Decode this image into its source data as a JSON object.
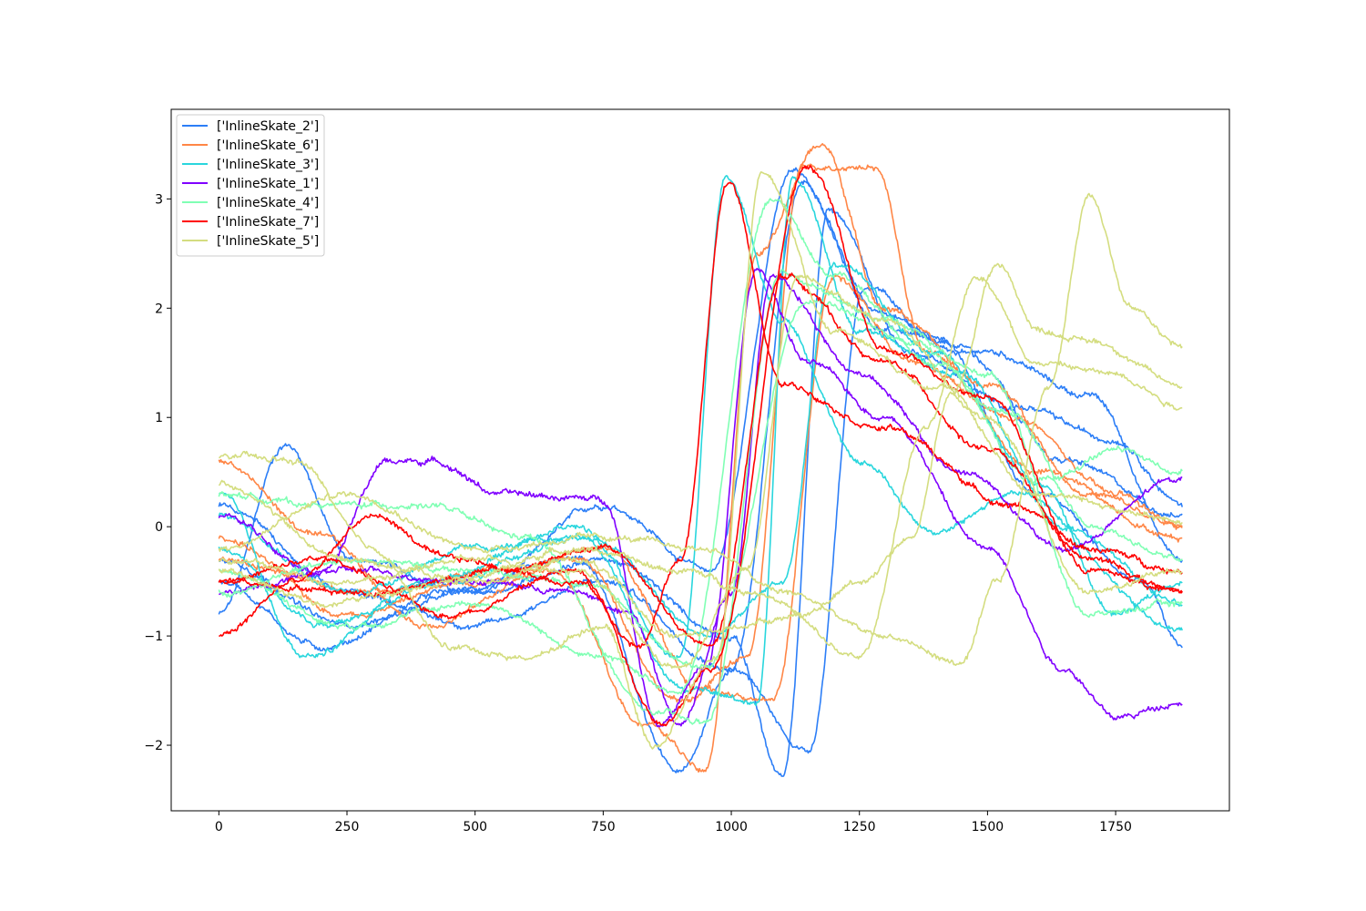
{
  "chart_data": {
    "type": "line",
    "title": "",
    "xlabel": "",
    "ylabel": "",
    "xlim": [
      -93,
      1972
    ],
    "ylim": [
      -2.6,
      3.82
    ],
    "x_ticks": [
      0,
      250,
      500,
      750,
      1000,
      1250,
      1500,
      1750
    ],
    "y_ticks": [
      -2,
      -1,
      0,
      1,
      2,
      3
    ],
    "grid": false,
    "legend_position": "top-left",
    "n_points": 1882,
    "series": [
      {
        "name": "['InlineSkate_2']",
        "color": "#2c7ef7",
        "shape": [
          [
            0,
            -0.8
          ],
          [
            130,
            0.75
          ],
          [
            260,
            -0.3
          ],
          [
            500,
            -0.6
          ],
          [
            750,
            0.2
          ],
          [
            960,
            -0.4
          ],
          [
            1120,
            3.25
          ],
          [
            1300,
            1.8
          ],
          [
            1500,
            1.6
          ],
          [
            1700,
            1.2
          ],
          [
            1880,
            -0.3
          ]
        ]
      },
      {
        "name": "['InlineSkate_2']",
        "color": "#2c7ef7",
        "shape": [
          [
            0,
            -0.5
          ],
          [
            200,
            -1.1
          ],
          [
            450,
            -0.6
          ],
          [
            700,
            -0.3
          ],
          [
            900,
            -2.25
          ],
          [
            1000,
            -1.3
          ],
          [
            1140,
            3.15
          ],
          [
            1280,
            2.0
          ],
          [
            1450,
            1.6
          ],
          [
            1650,
            0.6
          ],
          [
            1880,
            0.1
          ]
        ]
      },
      {
        "name": "['InlineSkate_2']",
        "color": "#2c7ef7",
        "shape": [
          [
            0,
            -0.3
          ],
          [
            250,
            -0.9
          ],
          [
            500,
            -0.6
          ],
          [
            750,
            -0.3
          ],
          [
            1000,
            -1.0
          ],
          [
            1100,
            -2.3
          ],
          [
            1190,
            2.9
          ],
          [
            1350,
            1.6
          ],
          [
            1550,
            1.1
          ],
          [
            1750,
            0.8
          ],
          [
            1880,
            0.2
          ]
        ]
      },
      {
        "name": "['InlineSkate_2']",
        "color": "#2c7ef7",
        "shape": [
          [
            0,
            0.2
          ],
          [
            250,
            -0.6
          ],
          [
            500,
            -0.9
          ],
          [
            750,
            -0.5
          ],
          [
            1000,
            -1.3
          ],
          [
            1150,
            -2.05
          ],
          [
            1260,
            2.2
          ],
          [
            1400,
            1.7
          ],
          [
            1600,
            0.3
          ],
          [
            1800,
            -0.5
          ],
          [
            1880,
            -1.1
          ]
        ]
      },
      {
        "name": "['InlineSkate_6']",
        "color": "#ff8646",
        "shape": [
          [
            0,
            0.6
          ],
          [
            200,
            -0.1
          ],
          [
            400,
            -0.9
          ],
          [
            650,
            -0.4
          ],
          [
            830,
            -1.8
          ],
          [
            950,
            -2.2
          ],
          [
            1050,
            2.5
          ],
          [
            1175,
            3.5
          ],
          [
            1300,
            2.0
          ],
          [
            1500,
            1.3
          ],
          [
            1700,
            0.3
          ],
          [
            1880,
            0.0
          ]
        ]
      },
      {
        "name": "['InlineSkate_6']",
        "color": "#ff8646",
        "shape": [
          [
            0,
            -0.1
          ],
          [
            250,
            -0.8
          ],
          [
            500,
            -0.5
          ],
          [
            700,
            -0.3
          ],
          [
            900,
            -1.6
          ],
          [
            1030,
            -1.2
          ],
          [
            1140,
            3.3
          ],
          [
            1280,
            3.3
          ],
          [
            1380,
            1.6
          ],
          [
            1600,
            0.5
          ],
          [
            1880,
            -0.1
          ]
        ]
      },
      {
        "name": "['InlineSkate_6']",
        "color": "#ff8646",
        "shape": [
          [
            0,
            -0.3
          ],
          [
            300,
            -0.6
          ],
          [
            550,
            -0.4
          ],
          [
            750,
            -0.2
          ],
          [
            950,
            -1.5
          ],
          [
            1080,
            -1.6
          ],
          [
            1200,
            2.3
          ],
          [
            1350,
            1.5
          ],
          [
            1550,
            1.0
          ],
          [
            1750,
            0.3
          ],
          [
            1880,
            0.0
          ]
        ]
      },
      {
        "name": "['InlineSkate_3']",
        "color": "#29d6dd",
        "shape": [
          [
            0,
            0.3
          ],
          [
            170,
            -1.2
          ],
          [
            400,
            -0.5
          ],
          [
            700,
            0.0
          ],
          [
            900,
            -1.2
          ],
          [
            990,
            3.2
          ],
          [
            1100,
            1.9
          ],
          [
            1250,
            0.6
          ],
          [
            1400,
            -0.05
          ],
          [
            1550,
            0.3
          ],
          [
            1880,
            -0.95
          ]
        ]
      },
      {
        "name": "['InlineSkate_3']",
        "color": "#29d6dd",
        "shape": [
          [
            0,
            -0.2
          ],
          [
            200,
            -0.9
          ],
          [
            450,
            -0.5
          ],
          [
            700,
            -0.1
          ],
          [
            920,
            -1.5
          ],
          [
            1050,
            -1.6
          ],
          [
            1120,
            3.2
          ],
          [
            1250,
            1.8
          ],
          [
            1450,
            1.4
          ],
          [
            1650,
            0.0
          ],
          [
            1880,
            -0.7
          ]
        ]
      },
      {
        "name": "['InlineSkate_3']",
        "color": "#29d6dd",
        "shape": [
          [
            0,
            0.1
          ],
          [
            250,
            -0.6
          ],
          [
            500,
            -0.2
          ],
          [
            720,
            -0.1
          ],
          [
            960,
            -1.0
          ],
          [
            1100,
            -0.5
          ],
          [
            1200,
            2.4
          ],
          [
            1400,
            1.6
          ],
          [
            1600,
            0.4
          ],
          [
            1750,
            -0.8
          ],
          [
            1880,
            -0.5
          ]
        ]
      },
      {
        "name": "['InlineSkate_1']",
        "color": "#8000ff",
        "shape": [
          [
            0,
            0.1
          ],
          [
            200,
            -0.4
          ],
          [
            330,
            0.6
          ],
          [
            420,
            0.6
          ],
          [
            550,
            0.3
          ],
          [
            750,
            0.25
          ],
          [
            860,
            -1.8
          ],
          [
            950,
            -1.3
          ],
          [
            1050,
            2.35
          ],
          [
            1150,
            1.5
          ],
          [
            1300,
            1.0
          ],
          [
            1500,
            -0.2
          ],
          [
            1650,
            -1.3
          ],
          [
            1750,
            -1.75
          ],
          [
            1880,
            -1.6
          ]
        ]
      },
      {
        "name": "['InlineSkate_1']",
        "color": "#8000ff",
        "shape": [
          [
            0,
            -0.6
          ],
          [
            250,
            -0.4
          ],
          [
            500,
            -0.5
          ],
          [
            700,
            -0.6
          ],
          [
            800,
            -0.8
          ],
          [
            900,
            -1.8
          ],
          [
            1000,
            -0.6
          ],
          [
            1080,
            2.3
          ],
          [
            1250,
            1.4
          ],
          [
            1450,
            0.5
          ],
          [
            1650,
            -0.2
          ],
          [
            1880,
            0.45
          ]
        ]
      },
      {
        "name": "['InlineSkate_4']",
        "color": "#80ffb4",
        "shape": [
          [
            0,
            0.3
          ],
          [
            200,
            0.2
          ],
          [
            400,
            0.2
          ],
          [
            600,
            -0.1
          ],
          [
            850,
            -1.7
          ],
          [
            950,
            -1.8
          ],
          [
            1100,
            2.3
          ],
          [
            1300,
            1.9
          ],
          [
            1500,
            1.4
          ],
          [
            1700,
            -0.8
          ],
          [
            1880,
            -0.7
          ]
        ]
      },
      {
        "name": "['InlineSkate_4']",
        "color": "#80ffb4",
        "shape": [
          [
            0,
            -0.4
          ],
          [
            250,
            -0.9
          ],
          [
            500,
            -0.7
          ],
          [
            750,
            -1.2
          ],
          [
            900,
            -1.5
          ],
          [
            1080,
            3.0
          ],
          [
            1200,
            2.3
          ],
          [
            1400,
            1.5
          ],
          [
            1600,
            0.4
          ],
          [
            1750,
            0.7
          ],
          [
            1880,
            0.5
          ]
        ]
      },
      {
        "name": "['InlineSkate_4']",
        "color": "#80ffb4",
        "shape": [
          [
            0,
            -0.6
          ],
          [
            250,
            -0.3
          ],
          [
            500,
            -0.4
          ],
          [
            700,
            -0.5
          ],
          [
            950,
            -1.3
          ],
          [
            1150,
            2.1
          ],
          [
            1350,
            1.7
          ],
          [
            1550,
            1.0
          ],
          [
            1700,
            0.0
          ],
          [
            1880,
            -0.3
          ]
        ]
      },
      {
        "name": "['InlineSkate_7']",
        "color": "#ff0000",
        "shape": [
          [
            0,
            -1.0
          ],
          [
            150,
            -0.5
          ],
          [
            300,
            0.1
          ],
          [
            450,
            -0.3
          ],
          [
            700,
            -0.5
          ],
          [
            820,
            -1.1
          ],
          [
            900,
            -0.3
          ],
          [
            995,
            3.15
          ],
          [
            1100,
            1.3
          ],
          [
            1300,
            0.9
          ],
          [
            1550,
            0.2
          ],
          [
            1700,
            -0.2
          ],
          [
            1880,
            -0.4
          ]
        ]
      },
      {
        "name": "['InlineSkate_7']",
        "color": "#ff0000",
        "shape": [
          [
            0,
            -0.5
          ],
          [
            200,
            -0.3
          ],
          [
            450,
            -0.8
          ],
          [
            700,
            -0.4
          ],
          [
            870,
            -1.8
          ],
          [
            960,
            -1.3
          ],
          [
            1150,
            3.3
          ],
          [
            1300,
            1.6
          ],
          [
            1500,
            1.2
          ],
          [
            1700,
            -0.4
          ],
          [
            1880,
            -0.6
          ]
        ]
      },
      {
        "name": "['InlineSkate_7']",
        "color": "#ff0000",
        "shape": [
          [
            0,
            -0.5
          ],
          [
            300,
            -0.6
          ],
          [
            550,
            -0.4
          ],
          [
            750,
            -0.2
          ],
          [
            960,
            -1.1
          ],
          [
            1100,
            2.3
          ],
          [
            1300,
            1.5
          ],
          [
            1500,
            0.7
          ],
          [
            1700,
            -0.3
          ],
          [
            1880,
            -0.6
          ]
        ]
      },
      {
        "name": "['InlineSkate_5']",
        "color": "#d4dd80",
        "shape": [
          [
            0,
            0.65
          ],
          [
            150,
            0.6
          ],
          [
            300,
            -0.2
          ],
          [
            450,
            -1.1
          ],
          [
            600,
            -1.2
          ],
          [
            750,
            -0.9
          ],
          [
            850,
            -2.0
          ],
          [
            970,
            -1.2
          ],
          [
            1060,
            3.25
          ],
          [
            1200,
            1.8
          ],
          [
            1400,
            1.3
          ],
          [
            1600,
            0.3
          ],
          [
            1880,
            0.05
          ]
        ]
      },
      {
        "name": "['InlineSkate_5']",
        "color": "#d4dd80",
        "shape": [
          [
            0,
            0.4
          ],
          [
            250,
            -0.3
          ],
          [
            500,
            -0.5
          ],
          [
            700,
            -0.3
          ],
          [
            900,
            -1.0
          ],
          [
            1150,
            -0.8
          ],
          [
            1250,
            -0.5
          ],
          [
            1350,
            -0.1
          ],
          [
            1430,
            1.2
          ],
          [
            1520,
            2.4
          ],
          [
            1600,
            1.8
          ],
          [
            1700,
            1.7
          ],
          [
            1880,
            1.3
          ]
        ]
      },
      {
        "name": "['InlineSkate_5']",
        "color": "#d4dd80",
        "shape": [
          [
            0,
            -0.2
          ],
          [
            250,
            0.3
          ],
          [
            500,
            -0.2
          ],
          [
            750,
            -0.1
          ],
          [
            950,
            -0.2
          ],
          [
            1100,
            -0.6
          ],
          [
            1300,
            -1.0
          ],
          [
            1450,
            -1.25
          ],
          [
            1520,
            -0.5
          ],
          [
            1620,
            1.3
          ],
          [
            1700,
            3.05
          ],
          [
            1780,
            2.0
          ],
          [
            1880,
            1.65
          ]
        ]
      },
      {
        "name": "['InlineSkate_5']",
        "color": "#d4dd80",
        "shape": [
          [
            0,
            -0.4
          ],
          [
            200,
            -0.7
          ],
          [
            450,
            -0.5
          ],
          [
            700,
            -0.2
          ],
          [
            900,
            -0.4
          ],
          [
            1050,
            -0.6
          ],
          [
            1250,
            -1.2
          ],
          [
            1380,
            0.9
          ],
          [
            1480,
            2.3
          ],
          [
            1600,
            1.5
          ],
          [
            1750,
            1.4
          ],
          [
            1880,
            1.1
          ]
        ]
      },
      {
        "name": "['InlineSkate_5']",
        "color": "#d4dd80",
        "shape": [
          [
            0,
            -0.3
          ],
          [
            250,
            -0.5
          ],
          [
            500,
            -0.3
          ],
          [
            700,
            -0.4
          ],
          [
            900,
            -1.3
          ],
          [
            1030,
            -0.4
          ],
          [
            1130,
            2.3
          ],
          [
            1300,
            1.9
          ],
          [
            1500,
            1.0
          ],
          [
            1700,
            -0.6
          ],
          [
            1880,
            -0.4
          ]
        ]
      }
    ],
    "legend": [
      {
        "label": "['InlineSkate_2']",
        "color": "#2c7ef7"
      },
      {
        "label": "['InlineSkate_6']",
        "color": "#ff8646"
      },
      {
        "label": "['InlineSkate_3']",
        "color": "#29d6dd"
      },
      {
        "label": "['InlineSkate_1']",
        "color": "#8000ff"
      },
      {
        "label": "['InlineSkate_4']",
        "color": "#80ffb4"
      },
      {
        "label": "['InlineSkate_7']",
        "color": "#ff0000"
      },
      {
        "label": "['InlineSkate_5']",
        "color": "#d4dd80"
      }
    ]
  }
}
